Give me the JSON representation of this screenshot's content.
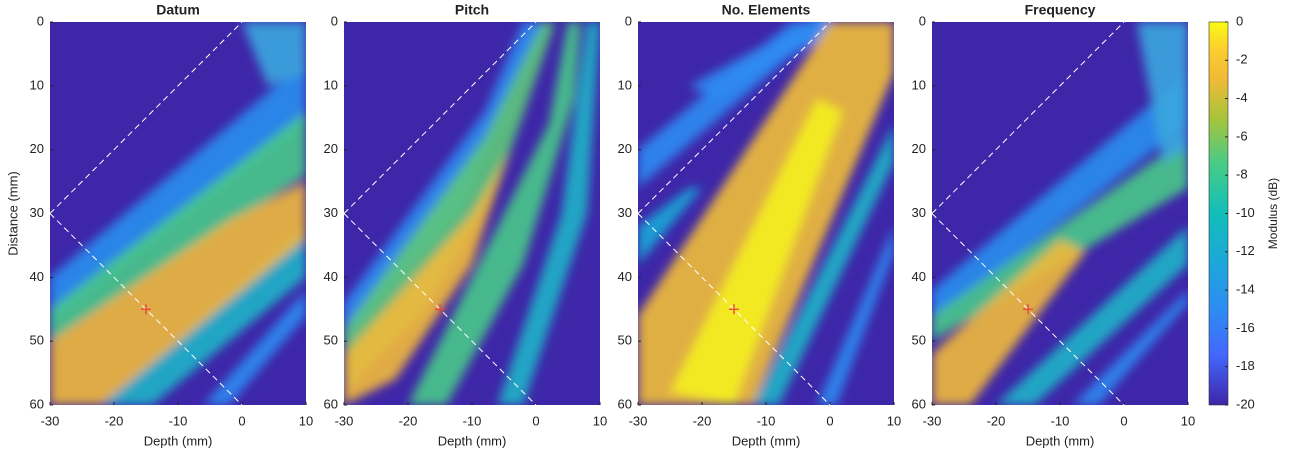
{
  "chart_data": [
    {
      "type": "heatmap",
      "title": "Datum",
      "xlabel": "Depth (mm)",
      "ylabel": "Distance (mm)",
      "xlim": [
        -30,
        10
      ],
      "ylim": [
        0,
        60
      ],
      "y_reversed": true,
      "xticks": [
        -30,
        -20,
        -10,
        0,
        10
      ],
      "yticks": [
        0,
        10,
        20,
        30,
        40,
        50,
        60
      ],
      "lines": [
        {
          "x": [
            -30,
            0
          ],
          "y": [
            30,
            0
          ]
        },
        {
          "x": [
            -30,
            0
          ],
          "y": [
            30,
            60
          ]
        }
      ],
      "marker": {
        "x": -15,
        "y": 45
      }
    },
    {
      "type": "heatmap",
      "title": "Pitch",
      "xlabel": "Depth (mm)",
      "xlim": [
        -30,
        10
      ],
      "ylim": [
        0,
        60
      ],
      "y_reversed": true,
      "xticks": [
        -30,
        -20,
        -10,
        0,
        10
      ],
      "yticks": [
        0,
        10,
        20,
        30,
        40,
        50,
        60
      ],
      "lines": [
        {
          "x": [
            -30,
            0
          ],
          "y": [
            30,
            0
          ]
        },
        {
          "x": [
            -30,
            0
          ],
          "y": [
            30,
            60
          ]
        }
      ],
      "marker": {
        "x": -15,
        "y": 45
      }
    },
    {
      "type": "heatmap",
      "title": "No. Elements",
      "xlabel": "Depth (mm)",
      "xlim": [
        -30,
        10
      ],
      "ylim": [
        0,
        60
      ],
      "y_reversed": true,
      "xticks": [
        -30,
        -20,
        -10,
        0,
        10
      ],
      "yticks": [
        0,
        10,
        20,
        30,
        40,
        50,
        60
      ],
      "lines": [
        {
          "x": [
            -30,
            0
          ],
          "y": [
            30,
            0
          ]
        },
        {
          "x": [
            -30,
            0
          ],
          "y": [
            30,
            60
          ]
        }
      ],
      "marker": {
        "x": -15,
        "y": 45
      }
    },
    {
      "type": "heatmap",
      "title": "Frequency",
      "xlabel": "Depth (mm)",
      "xlim": [
        -30,
        10
      ],
      "ylim": [
        0,
        60
      ],
      "y_reversed": true,
      "xticks": [
        -30,
        -20,
        -10,
        0,
        10
      ],
      "yticks": [
        0,
        10,
        20,
        30,
        40,
        50,
        60
      ],
      "lines": [
        {
          "x": [
            -30,
            0
          ],
          "y": [
            30,
            0
          ]
        },
        {
          "x": [
            -30,
            0
          ],
          "y": [
            30,
            60
          ]
        }
      ],
      "marker": {
        "x": -15,
        "y": 45
      }
    }
  ],
  "colorbar": {
    "label": "Modulus (dB)",
    "lim": [
      -20,
      0
    ],
    "ticks": [
      0,
      -2,
      -4,
      -6,
      -8,
      -10,
      -12,
      -14,
      -16,
      -18,
      -20
    ]
  }
}
